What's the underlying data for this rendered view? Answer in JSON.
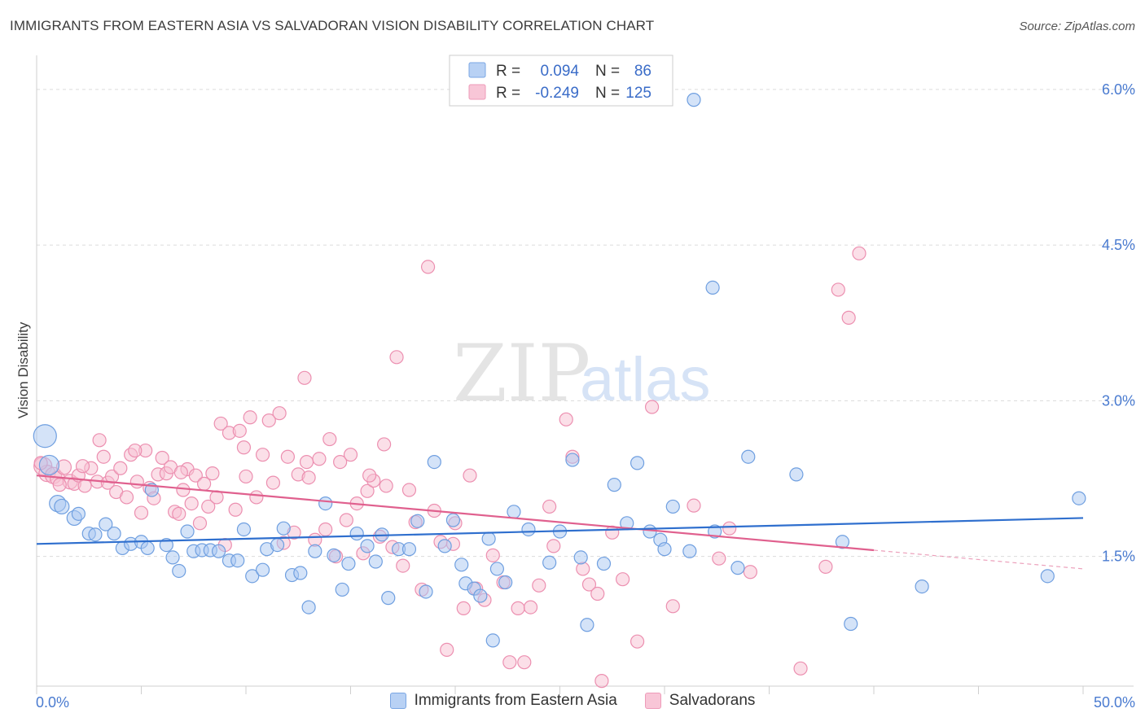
{
  "header": {
    "title": "IMMIGRANTS FROM EASTERN ASIA VS SALVADORAN VISION DISABILITY CORRELATION CHART",
    "source": "Source: ZipAtlas.com"
  },
  "watermark": {
    "zip": "ZIP",
    "atlas": "atlas"
  },
  "legend": {
    "rows": [
      {
        "r_label": "R =",
        "r_value": "0.094",
        "n_label": "N =",
        "n_value": "86"
      },
      {
        "r_label": "R =",
        "r_value": "-0.249",
        "n_label": "N =",
        "n_value": "125"
      }
    ]
  },
  "chart_data": {
    "type": "scatter",
    "title": "IMMIGRANTS FROM EASTERN ASIA VS SALVADORAN VISION DISABILITY CORRELATION CHART",
    "xlabel": "",
    "ylabel": "Vision Disability",
    "xlim": [
      0,
      50
    ],
    "ylim": [
      0.25,
      6.25
    ],
    "x_tick_labels": [
      "0.0%",
      "50.0%"
    ],
    "y_ticks": [
      1.5,
      3.0,
      4.5,
      6.0
    ],
    "y_tick_labels": [
      "1.5%",
      "3.0%",
      "4.5%",
      "6.0%"
    ],
    "grid": "horizontal dashed",
    "legend_position": "top-center",
    "colors": {
      "blue_fill": "#a9c8f2",
      "blue_stroke": "#6f9fe0",
      "blue_line": "#2f6fce",
      "pink_fill": "#f7bfd2",
      "pink_stroke": "#ec8fb0",
      "pink_line": "#e0608e"
    },
    "series": [
      {
        "name": "Immigrants from Eastern Asia",
        "color": "#6f9fe0",
        "trend": {
          "x": [
            0,
            50
          ],
          "y": [
            1.62,
            1.87
          ],
          "solid_to": 50
        },
        "points": [
          [
            0.4,
            2.66,
            14
          ],
          [
            0.6,
            2.38,
            12
          ],
          [
            1.0,
            2.01,
            10
          ],
          [
            1.2,
            1.98,
            9
          ],
          [
            1.8,
            1.87,
            9
          ],
          [
            2.0,
            1.91,
            8
          ],
          [
            2.5,
            1.72,
            8
          ],
          [
            2.8,
            1.71,
            8
          ],
          [
            3.3,
            1.81,
            8
          ],
          [
            3.7,
            1.72,
            8
          ],
          [
            4.1,
            1.58,
            8
          ],
          [
            4.5,
            1.62,
            8
          ],
          [
            5.0,
            1.64,
            8
          ],
          [
            5.3,
            1.58,
            8
          ],
          [
            5.5,
            2.14,
            8
          ],
          [
            6.2,
            1.61,
            8
          ],
          [
            6.5,
            1.49,
            8
          ],
          [
            6.8,
            1.36,
            8
          ],
          [
            7.2,
            1.74,
            8
          ],
          [
            7.5,
            1.55,
            8
          ],
          [
            7.9,
            1.56,
            8
          ],
          [
            8.3,
            1.56,
            8
          ],
          [
            8.7,
            1.55,
            8
          ],
          [
            9.2,
            1.46,
            8
          ],
          [
            9.6,
            1.46,
            8
          ],
          [
            9.9,
            1.76,
            8
          ],
          [
            10.3,
            1.31,
            8
          ],
          [
            10.8,
            1.37,
            8
          ],
          [
            11.0,
            1.57,
            8
          ],
          [
            11.5,
            1.61,
            8
          ],
          [
            11.8,
            1.77,
            8
          ],
          [
            12.2,
            1.32,
            8
          ],
          [
            12.6,
            1.34,
            8
          ],
          [
            13.0,
            1.01,
            8
          ],
          [
            13.3,
            1.55,
            8
          ],
          [
            13.8,
            2.01,
            8
          ],
          [
            14.2,
            1.51,
            8
          ],
          [
            14.6,
            1.18,
            8
          ],
          [
            14.9,
            1.43,
            8
          ],
          [
            15.3,
            1.72,
            8
          ],
          [
            15.8,
            1.6,
            8
          ],
          [
            16.2,
            1.45,
            8
          ],
          [
            16.5,
            1.71,
            8
          ],
          [
            16.8,
            1.1,
            8
          ],
          [
            17.3,
            1.57,
            8
          ],
          [
            17.8,
            1.57,
            8
          ],
          [
            18.2,
            1.84,
            8
          ],
          [
            18.6,
            1.16,
            8
          ],
          [
            19.0,
            2.41,
            8
          ],
          [
            19.5,
            1.6,
            8
          ],
          [
            19.9,
            1.85,
            8
          ],
          [
            20.3,
            1.42,
            8
          ],
          [
            20.5,
            1.24,
            8
          ],
          [
            20.9,
            1.19,
            8
          ],
          [
            21.2,
            1.12,
            8
          ],
          [
            21.6,
            1.67,
            8
          ],
          [
            21.8,
            0.69,
            8
          ],
          [
            22.0,
            1.38,
            8
          ],
          [
            22.4,
            1.25,
            8
          ],
          [
            22.8,
            1.93,
            8
          ],
          [
            23.5,
            1.76,
            8
          ],
          [
            24.5,
            1.44,
            8
          ],
          [
            25.0,
            1.74,
            8
          ],
          [
            25.6,
            2.43,
            8
          ],
          [
            26.0,
            1.49,
            8
          ],
          [
            26.3,
            0.84,
            8
          ],
          [
            27.1,
            1.43,
            8
          ],
          [
            27.6,
            2.19,
            8
          ],
          [
            28.2,
            1.82,
            8
          ],
          [
            28.7,
            2.4,
            8
          ],
          [
            29.3,
            1.74,
            8
          ],
          [
            29.8,
            1.66,
            8
          ],
          [
            30.0,
            1.57,
            8
          ],
          [
            30.4,
            1.98,
            8
          ],
          [
            31.2,
            1.55,
            8
          ],
          [
            31.4,
            5.9,
            8
          ],
          [
            32.3,
            4.09,
            8
          ],
          [
            32.4,
            1.74,
            8
          ],
          [
            33.5,
            1.39,
            8
          ],
          [
            34.0,
            2.46,
            8
          ],
          [
            36.3,
            2.29,
            8
          ],
          [
            38.5,
            1.64,
            8
          ],
          [
            38.9,
            0.85,
            8
          ],
          [
            42.3,
            1.21,
            8
          ],
          [
            48.3,
            1.31,
            8
          ],
          [
            49.8,
            2.06,
            8
          ]
        ]
      },
      {
        "name": "Salvadorans",
        "color": "#ec8fb0",
        "trend": {
          "x": [
            0,
            50
          ],
          "y": [
            2.28,
            1.38
          ],
          "solid_to": 40
        },
        "points": [
          [
            0.3,
            2.37,
            11
          ],
          [
            0.5,
            2.3,
            10
          ],
          [
            0.8,
            2.28,
            10
          ],
          [
            1.0,
            2.25,
            9
          ],
          [
            1.3,
            2.36,
            9
          ],
          [
            1.6,
            2.22,
            9
          ],
          [
            1.8,
            2.2,
            8
          ],
          [
            2.0,
            2.28,
            8
          ],
          [
            2.3,
            2.18,
            8
          ],
          [
            2.6,
            2.35,
            8
          ],
          [
            2.9,
            2.22,
            8
          ],
          [
            3.0,
            2.62,
            8
          ],
          [
            3.2,
            2.46,
            8
          ],
          [
            3.4,
            2.21,
            8
          ],
          [
            3.6,
            2.27,
            8
          ],
          [
            3.8,
            2.12,
            8
          ],
          [
            4.0,
            2.35,
            8
          ],
          [
            4.3,
            2.07,
            8
          ],
          [
            4.5,
            2.48,
            8
          ],
          [
            4.8,
            2.22,
            8
          ],
          [
            5.0,
            1.92,
            8
          ],
          [
            5.2,
            2.52,
            8
          ],
          [
            5.4,
            2.16,
            8
          ],
          [
            5.6,
            2.06,
            8
          ],
          [
            5.8,
            2.29,
            8
          ],
          [
            6.0,
            2.45,
            8
          ],
          [
            6.2,
            2.3,
            8
          ],
          [
            6.4,
            2.36,
            8
          ],
          [
            6.6,
            1.93,
            8
          ],
          [
            6.8,
            1.91,
            8
          ],
          [
            7.0,
            2.14,
            8
          ],
          [
            7.2,
            2.34,
            8
          ],
          [
            7.4,
            2.01,
            8
          ],
          [
            7.6,
            2.28,
            8
          ],
          [
            7.8,
            1.82,
            8
          ],
          [
            8.0,
            2.2,
            8
          ],
          [
            8.2,
            1.98,
            8
          ],
          [
            8.4,
            2.3,
            8
          ],
          [
            8.6,
            2.07,
            8
          ],
          [
            8.8,
            2.78,
            8
          ],
          [
            9.0,
            1.61,
            8
          ],
          [
            9.2,
            2.69,
            8
          ],
          [
            9.5,
            1.95,
            8
          ],
          [
            9.7,
            2.71,
            8
          ],
          [
            10.0,
            2.27,
            8
          ],
          [
            10.2,
            2.84,
            8
          ],
          [
            10.5,
            2.07,
            8
          ],
          [
            10.8,
            2.48,
            8
          ],
          [
            11.1,
            2.81,
            8
          ],
          [
            11.3,
            2.21,
            8
          ],
          [
            11.6,
            2.88,
            8
          ],
          [
            11.8,
            1.63,
            8
          ],
          [
            12.0,
            2.46,
            8
          ],
          [
            12.3,
            1.73,
            8
          ],
          [
            12.5,
            2.29,
            8
          ],
          [
            12.8,
            3.22,
            8
          ],
          [
            13.0,
            2.26,
            8
          ],
          [
            13.3,
            1.66,
            8
          ],
          [
            13.5,
            2.44,
            8
          ],
          [
            13.8,
            1.76,
            8
          ],
          [
            14.0,
            2.63,
            8
          ],
          [
            14.3,
            1.5,
            8
          ],
          [
            14.5,
            2.41,
            8
          ],
          [
            14.8,
            1.85,
            8
          ],
          [
            15.0,
            2.48,
            8
          ],
          [
            15.3,
            2.01,
            8
          ],
          [
            15.6,
            1.53,
            8
          ],
          [
            15.8,
            2.13,
            8
          ],
          [
            16.1,
            2.23,
            8
          ],
          [
            16.4,
            1.69,
            8
          ],
          [
            16.7,
            2.18,
            8
          ],
          [
            17.0,
            1.59,
            8
          ],
          [
            17.2,
            3.42,
            8
          ],
          [
            17.5,
            1.41,
            8
          ],
          [
            17.8,
            2.14,
            8
          ],
          [
            18.1,
            1.83,
            8
          ],
          [
            18.4,
            1.18,
            8
          ],
          [
            18.7,
            4.29,
            8
          ],
          [
            19.0,
            1.94,
            8
          ],
          [
            19.3,
            1.64,
            8
          ],
          [
            19.6,
            0.6,
            8
          ],
          [
            20.0,
            1.82,
            8
          ],
          [
            20.4,
            1.0,
            8
          ],
          [
            20.7,
            2.28,
            8
          ],
          [
            21.0,
            1.19,
            8
          ],
          [
            21.4,
            1.08,
            8
          ],
          [
            21.8,
            1.51,
            8
          ],
          [
            22.3,
            1.25,
            8
          ],
          [
            22.6,
            0.48,
            8
          ],
          [
            23.0,
            1.0,
            8
          ],
          [
            23.3,
            0.48,
            8
          ],
          [
            23.6,
            1.01,
            8
          ],
          [
            24.0,
            1.22,
            8
          ],
          [
            24.7,
            1.6,
            8
          ],
          [
            25.3,
            2.82,
            8
          ],
          [
            25.6,
            2.46,
            8
          ],
          [
            26.1,
            1.38,
            8
          ],
          [
            26.4,
            1.23,
            8
          ],
          [
            26.8,
            1.14,
            8
          ],
          [
            27.0,
            0.3,
            8
          ],
          [
            27.5,
            1.73,
            8
          ],
          [
            28.0,
            1.28,
            8
          ],
          [
            28.7,
            0.68,
            8
          ],
          [
            29.4,
            2.94,
            8
          ],
          [
            30.4,
            1.02,
            8
          ],
          [
            31.4,
            1.99,
            8
          ],
          [
            32.6,
            1.48,
            8
          ],
          [
            33.1,
            1.77,
            8
          ],
          [
            34.1,
            1.35,
            8
          ],
          [
            36.5,
            0.42,
            8
          ],
          [
            37.7,
            1.4,
            8
          ],
          [
            38.3,
            4.07,
            8
          ],
          [
            38.8,
            3.8,
            8
          ],
          [
            39.3,
            4.42,
            8
          ],
          [
            0.2,
            2.4,
            8
          ],
          [
            1.1,
            2.19,
            8
          ],
          [
            2.2,
            2.37,
            8
          ],
          [
            4.7,
            2.52,
            8
          ],
          [
            6.9,
            2.31,
            8
          ],
          [
            9.9,
            2.55,
            8
          ],
          [
            12.9,
            2.41,
            8
          ],
          [
            15.9,
            2.28,
            8
          ],
          [
            19.9,
            1.62,
            8
          ],
          [
            24.5,
            1.98,
            8
          ],
          [
            16.6,
            2.58,
            8
          ]
        ]
      }
    ]
  },
  "bottom_legend": {
    "items": [
      {
        "label": "Immigrants from Eastern Asia",
        "fill": "#b8d1f4",
        "stroke": "#7aa6e3"
      },
      {
        "label": "Salvadorans",
        "fill": "#f8c6d7",
        "stroke": "#ee9bb9"
      }
    ]
  }
}
